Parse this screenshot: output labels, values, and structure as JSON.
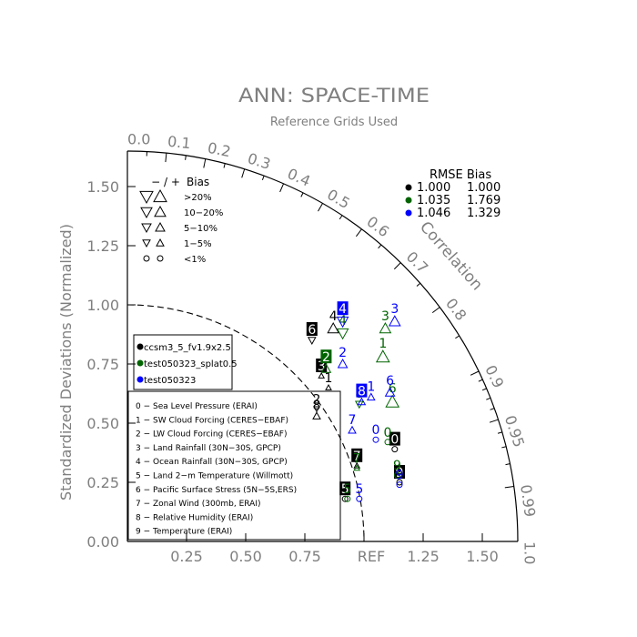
{
  "chart_data": {
    "type": "taylor",
    "title": "ANN: SPACE-TIME",
    "subtitle": "Reference Grids Used",
    "ylabel": "Standardized Deviations (Normalized)",
    "corr_label": "Correlation",
    "ref_label": "REF",
    "std_max": 1.65,
    "y_ticks": [
      "0.00",
      "0.25",
      "0.50",
      "0.75",
      "1.00",
      "1.25",
      "1.50"
    ],
    "x_ticks": [
      "0.25",
      "0.50",
      "0.75",
      "1.25",
      "1.50"
    ],
    "corr_ticks": [
      {
        "r": 0.0,
        "label": "0.0"
      },
      {
        "r": 0.1,
        "label": "0.1"
      },
      {
        "r": 0.2,
        "label": "0.2"
      },
      {
        "r": 0.3,
        "label": "0.3"
      },
      {
        "r": 0.4,
        "label": "0.4"
      },
      {
        "r": 0.5,
        "label": "0.5"
      },
      {
        "r": 0.6,
        "label": "0.6"
      },
      {
        "r": 0.7,
        "label": "0.7"
      },
      {
        "r": 0.8,
        "label": "0.8"
      },
      {
        "r": 0.9,
        "label": "0.9"
      },
      {
        "r": 0.95,
        "label": "0.95"
      },
      {
        "r": 0.99,
        "label": "0.99"
      },
      {
        "r": 1.0,
        "label": "1.0"
      }
    ],
    "bias_legend": {
      "header_sign": "− / +",
      "header_bias": "Bias",
      "rows": [
        {
          "label": ">20%",
          "size": 7
        },
        {
          "label": "10−20%",
          "size": 6
        },
        {
          "label": "5−10%",
          "size": 5
        },
        {
          "label": "1−5%",
          "size": 4
        },
        {
          "label": "<1%",
          "size": 3,
          "circle": true
        }
      ]
    },
    "rmse_legend": {
      "header": "RMSE  Bias",
      "rows": [
        {
          "color": "#000000",
          "rmse": "1.000",
          "bias": "1.000"
        },
        {
          "color": "#006400",
          "rmse": "1.035",
          "bias": "1.769"
        },
        {
          "color": "#0000ff",
          "rmse": "1.046",
          "bias": "1.329"
        }
      ]
    },
    "series": [
      {
        "name": "ccsm3_5_fv1.9x2.5",
        "color": "#000000",
        "points": [
          {
            "id": "0",
            "x": 1.13,
            "y": 0.39,
            "m": "circle",
            "s": 3,
            "box": true
          },
          {
            "id": "1",
            "x": 0.85,
            "y": 0.65,
            "m": "up",
            "s": 3,
            "box": false
          },
          {
            "id": "2",
            "x": 0.8,
            "y": 0.56,
            "m": "down",
            "s": 3,
            "box": false
          },
          {
            "id": "3",
            "x": 0.82,
            "y": 0.7,
            "m": "up",
            "s": 3,
            "box": true
          },
          {
            "id": "4",
            "x": 0.87,
            "y": 0.9,
            "m": "up",
            "s": 6,
            "box": false
          },
          {
            "id": "5",
            "x": 0.92,
            "y": 0.18,
            "m": "circle",
            "s": 3,
            "box": true
          },
          {
            "id": "6",
            "x": 0.78,
            "y": 0.85,
            "m": "down",
            "s": 4,
            "box": true
          },
          {
            "id": "7",
            "x": 0.97,
            "y": 0.32,
            "m": "up",
            "s": 3,
            "box": true
          },
          {
            "id": "8",
            "x": 0.8,
            "y": 0.53,
            "m": "up",
            "s": 4,
            "box": false
          },
          {
            "id": "9",
            "x": 1.15,
            "y": 0.25,
            "m": "circle",
            "s": 3,
            "box": true
          }
        ]
      },
      {
        "name": "test050323_splat0.5",
        "color": "#006400",
        "points": [
          {
            "id": "0",
            "x": 1.1,
            "y": 0.42,
            "m": "circle",
            "s": 3,
            "box": false
          },
          {
            "id": "1",
            "x": 1.08,
            "y": 0.78,
            "m": "up",
            "s": 7,
            "box": false
          },
          {
            "id": "2",
            "x": 0.84,
            "y": 0.73,
            "m": "up",
            "s": 5,
            "box": true
          },
          {
            "id": "3",
            "x": 1.09,
            "y": 0.9,
            "m": "up",
            "s": 6,
            "box": false
          },
          {
            "id": "4",
            "x": 0.91,
            "y": 0.88,
            "m": "down",
            "s": 6,
            "box": false
          },
          {
            "id": "5",
            "x": 0.93,
            "y": 0.18,
            "m": "circle",
            "s": 3,
            "box": false
          },
          {
            "id": "6",
            "x": 1.12,
            "y": 0.59,
            "m": "up",
            "s": 7,
            "box": false
          },
          {
            "id": "7",
            "x": 0.97,
            "y": 0.31,
            "m": "up",
            "s": 3,
            "box": false
          },
          {
            "id": "8",
            "x": 0.98,
            "y": 0.58,
            "m": "down",
            "s": 4,
            "box": false
          },
          {
            "id": "9",
            "x": 1.14,
            "y": 0.28,
            "m": "circle",
            "s": 3,
            "box": false
          }
        ]
      },
      {
        "name": "test050323",
        "color": "#0000ff",
        "points": [
          {
            "id": "0",
            "x": 1.05,
            "y": 0.43,
            "m": "circle",
            "s": 3,
            "box": false
          },
          {
            "id": "1",
            "x": 1.03,
            "y": 0.61,
            "m": "up",
            "s": 4,
            "box": false
          },
          {
            "id": "2",
            "x": 0.91,
            "y": 0.75,
            "m": "up",
            "s": 5,
            "box": false
          },
          {
            "id": "3",
            "x": 1.13,
            "y": 0.93,
            "m": "up",
            "s": 6,
            "box": false
          },
          {
            "id": "4",
            "x": 0.91,
            "y": 0.93,
            "m": "down",
            "s": 6,
            "box": true
          },
          {
            "id": "5",
            "x": 0.98,
            "y": 0.18,
            "m": "circle",
            "s": 3,
            "box": false
          },
          {
            "id": "6",
            "x": 1.11,
            "y": 0.63,
            "m": "up",
            "s": 5,
            "box": false
          },
          {
            "id": "7",
            "x": 0.95,
            "y": 0.47,
            "m": "up",
            "s": 4,
            "box": false
          },
          {
            "id": "8",
            "x": 0.99,
            "y": 0.59,
            "m": "up",
            "s": 4,
            "box": true
          },
          {
            "id": "9",
            "x": 1.15,
            "y": 0.24,
            "m": "circle",
            "s": 3,
            "box": false
          }
        ]
      }
    ],
    "case_legend": [
      "ccsm3_5_fv1.9x2.5",
      "test050323_splat0.5",
      "test050323"
    ],
    "variables": [
      "0 − Sea Level Pressure (ERAI)",
      "1 − SW Cloud Forcing (CERES−EBAF)",
      "2 − LW Cloud Forcing (CERES−EBAF)",
      "3 − Land Rainfall (30N−30S, GPCP)",
      "4 − Ocean Rainfall (30N−30S, GPCP)",
      "5 − Land 2−m Temperature (Willmott)",
      "6 − Pacific Surface Stress (5N−5S,ERS)",
      "7 − Zonal Wind (300mb, ERAI)",
      "8 − Relative Humidity (ERAI)",
      "9 − Temperature (ERAI)"
    ]
  }
}
